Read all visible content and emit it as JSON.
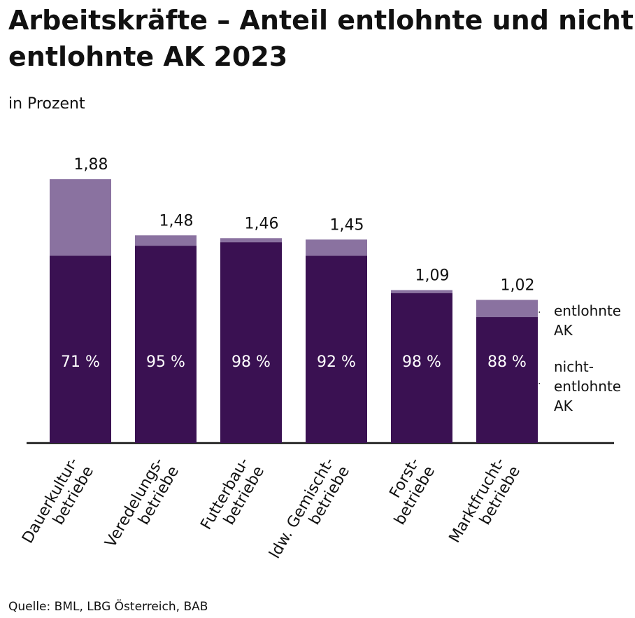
{
  "chart_data": {
    "type": "stacked_share_bar",
    "title": "Arbeitskräfte – Anteil entlohnte und nicht-entlohnte AK 2023",
    "subtitle": "in Prozent",
    "source": "Quelle: BML, LBG Österreich, BAB",
    "categories": [
      [
        "Dauerkultur-",
        "betriebe"
      ],
      [
        "Veredelungs-",
        "betriebe"
      ],
      [
        "Futterbau-",
        "betriebe"
      ],
      [
        "ldw. Gemischt-",
        "betriebe"
      ],
      [
        "Forst-",
        "betriebe"
      ],
      [
        "Marktfrucht-",
        "betriebe"
      ]
    ],
    "totals": {
      "name": "entlohnte AK",
      "color": "#8a72a0",
      "values": [
        1.88,
        1.48,
        1.46,
        1.45,
        1.09,
        1.02
      ],
      "value_labels": [
        "1,88",
        "1,48",
        "1,46",
        "1,45",
        "1,09",
        "1,02"
      ]
    },
    "shares": {
      "name": "nicht-entlohnte AK",
      "color": "#3a1152",
      "values": [
        71,
        95,
        98,
        92,
        98,
        88
      ],
      "value_labels": [
        "71 %",
        "95 %",
        "98 %",
        "92 %",
        "98 %",
        "88 %"
      ]
    },
    "ylim": [
      0,
      2
    ]
  }
}
